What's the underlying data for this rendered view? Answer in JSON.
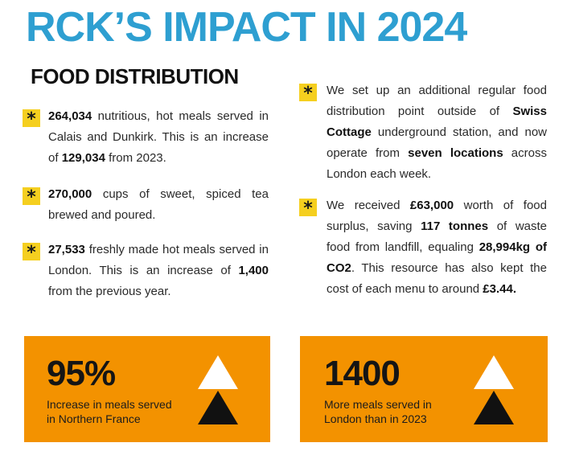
{
  "header": {
    "title": "RCK’S IMPACT IN 2024",
    "section_heading": "FOOD DISTRIBUTION"
  },
  "left_bullets": [
    {
      "icon": "asterisk-icon",
      "parts": [
        {
          "t": "264,034",
          "b": true
        },
        {
          "t": " nutritious, hot meals served in Calais and Dunkirk. This is an increase of "
        },
        {
          "t": "129,034",
          "b": true
        },
        {
          "t": " from 2023."
        }
      ]
    },
    {
      "icon": "asterisk-icon",
      "parts": [
        {
          "t": "270,000",
          "b": true
        },
        {
          "t": " cups of sweet, spiced tea brewed and poured."
        }
      ]
    },
    {
      "icon": "asterisk-icon",
      "parts": [
        {
          "t": "27,533",
          "b": true
        },
        {
          "t": " freshly made hot meals served in London. This is an increase of "
        },
        {
          "t": "1,400",
          "b": true
        },
        {
          "t": " from the previous year."
        }
      ]
    }
  ],
  "right_bullets": [
    {
      "icon": "asterisk-icon",
      "parts": [
        {
          "t": "We set up an additional regular food distribution point outside of "
        },
        {
          "t": "Swiss Cottage",
          "b": true
        },
        {
          "t": " underground station, and now operate from "
        },
        {
          "t": "seven locations",
          "b": true
        },
        {
          "t": " across London each week."
        }
      ]
    },
    {
      "icon": "asterisk-icon",
      "parts": [
        {
          "t": "We received "
        },
        {
          "t": "£63,000",
          "b": true
        },
        {
          "t": " worth of food surplus, saving "
        },
        {
          "t": "117 tonnes",
          "b": true
        },
        {
          "t": " of waste food from landfill, equaling "
        },
        {
          "t": "28,994kg of CO2",
          "b": true
        },
        {
          "t": ". This resource has also kept the cost of each menu to around "
        },
        {
          "t": "£3.44.",
          "b": true
        }
      ]
    }
  ],
  "stats": [
    {
      "value": "95%",
      "caption_line1": "Increase in meals served",
      "caption_line2": "in Northern France",
      "icon": "up-triangles-icon"
    },
    {
      "value": "1400",
      "caption_line1": "More meals served in",
      "caption_line2": "London than in 2023",
      "icon": "up-triangles-icon"
    }
  ],
  "colors": {
    "title": "#2e9fd1",
    "accent_yellow": "#f5cf1f",
    "stat_box": "#f39200"
  }
}
